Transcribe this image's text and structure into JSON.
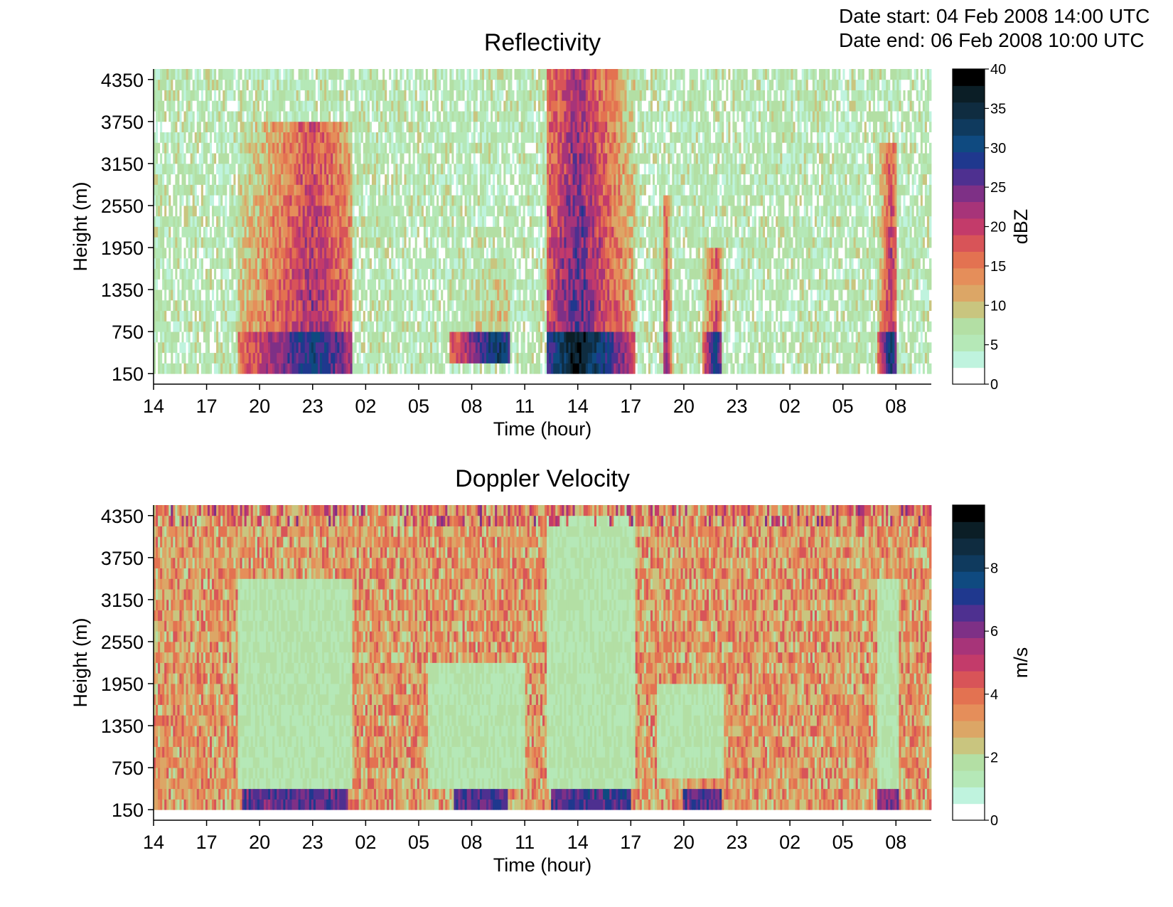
{
  "header": {
    "date_start_label": "Date start:",
    "date_start_value": "04 Feb 2008 14:00 UTC",
    "date_end_label": "Date end:",
    "date_end_value": "06 Feb 2008 10:00 UTC"
  },
  "colormap": [
    "#ffffff",
    "#bff3de",
    "#b5e8b7",
    "#b3dfa4",
    "#c9c57f",
    "#dca666",
    "#e58e5a",
    "#e37251",
    "#d85458",
    "#c33b6a",
    "#a73479",
    "#7e3086",
    "#4e3090",
    "#1f388e",
    "#0f4a80",
    "#0f3a5e",
    "#0f2c40",
    "#0b1e26",
    "#000000"
  ],
  "chart_data": [
    {
      "type": "heatmap",
      "title": "Reflectivity",
      "xlabel": "Time (hour)",
      "ylabel": "Height (m)",
      "x_ticks": [
        "14",
        "17",
        "20",
        "23",
        "02",
        "05",
        "08",
        "11",
        "14",
        "17",
        "20",
        "23",
        "02",
        "05",
        "08"
      ],
      "x_range_hours": [
        0,
        44
      ],
      "y_ticks": [
        "150",
        "750",
        "1350",
        "1950",
        "2550",
        "3150",
        "3750",
        "4350"
      ],
      "ylim": [
        150,
        4350
      ],
      "colorbar": {
        "label": "dBZ",
        "min": 0,
        "max": 40,
        "ticks": [
          "0",
          "5",
          "10",
          "15",
          "20",
          "25",
          "30",
          "35",
          "40"
        ]
      },
      "background_level": 6,
      "noise_amplitude": 3,
      "empty_lowest_gate": true,
      "features": [
        {
          "t_start": 4.8,
          "t_end": 11.2,
          "h_bottom": 150,
          "h_top": 3700,
          "peak": 24,
          "core_t": 9.0,
          "near_ground_peak": 30
        },
        {
          "t_start": 16.8,
          "t_end": 20.2,
          "h_bottom": 300,
          "h_top": 1800,
          "peak": 13,
          "core_t": 19.5,
          "near_ground_peak": 32
        },
        {
          "t_start": 22.3,
          "t_end": 27.2,
          "h_bottom": 150,
          "h_top": 4500,
          "peak": 28,
          "core_t": 24.0,
          "near_ground_peak": 38
        },
        {
          "t_start": 28.8,
          "t_end": 29.3,
          "h_bottom": 150,
          "h_top": 2700,
          "peak": 24,
          "core_t": 29.0,
          "near_ground_peak": 26
        },
        {
          "t_start": 31.0,
          "t_end": 32.2,
          "h_bottom": 150,
          "h_top": 1900,
          "peak": 22,
          "core_t": 31.8,
          "near_ground_peak": 30
        },
        {
          "t_start": 41.0,
          "t_end": 42.0,
          "h_bottom": 150,
          "h_top": 3400,
          "peak": 24,
          "core_t": 41.7,
          "near_ground_peak": 32
        }
      ]
    },
    {
      "type": "heatmap",
      "title": "Doppler Velocity",
      "xlabel": "Time (hour)",
      "ylabel": "Height (m)",
      "x_ticks": [
        "14",
        "17",
        "20",
        "23",
        "02",
        "05",
        "08",
        "11",
        "14",
        "17",
        "20",
        "23",
        "02",
        "05",
        "08"
      ],
      "x_range_hours": [
        0,
        44
      ],
      "y_ticks": [
        "150",
        "750",
        "1350",
        "1950",
        "2550",
        "3150",
        "3750",
        "4350"
      ],
      "ylim": [
        150,
        4350
      ],
      "colorbar": {
        "label": "m/s",
        "min": 0,
        "max": 10,
        "ticks": [
          "0",
          "2",
          "4",
          "6",
          "8"
        ]
      },
      "background_level": 3.2,
      "noise_amplitude": 1.3,
      "empty_lowest_gate": true,
      "calm_level": 1.6,
      "calm_regions": [
        {
          "t_start": 4.8,
          "t_end": 11.2,
          "h_bottom": 450,
          "h_top": 3500
        },
        {
          "t_start": 15.5,
          "t_end": 21.0,
          "h_bottom": 450,
          "h_top": 2200
        },
        {
          "t_start": 22.3,
          "t_end": 27.2,
          "h_bottom": 450,
          "h_top": 4400
        },
        {
          "t_start": 28.5,
          "t_end": 32.3,
          "h_bottom": 600,
          "h_top": 1900
        },
        {
          "t_start": 41.0,
          "t_end": 42.2,
          "h_bottom": 450,
          "h_top": 3500
        }
      ],
      "near_ground_peaks": [
        {
          "t_start": 5.0,
          "t_end": 11.0,
          "level": 6.5
        },
        {
          "t_start": 17.0,
          "t_end": 20.0,
          "level": 6.5
        },
        {
          "t_start": 22.5,
          "t_end": 27.0,
          "level": 6.8
        },
        {
          "t_start": 30.0,
          "t_end": 32.2,
          "level": 6.5
        },
        {
          "t_start": 41.0,
          "t_end": 42.2,
          "level": 6.0
        }
      ]
    }
  ]
}
